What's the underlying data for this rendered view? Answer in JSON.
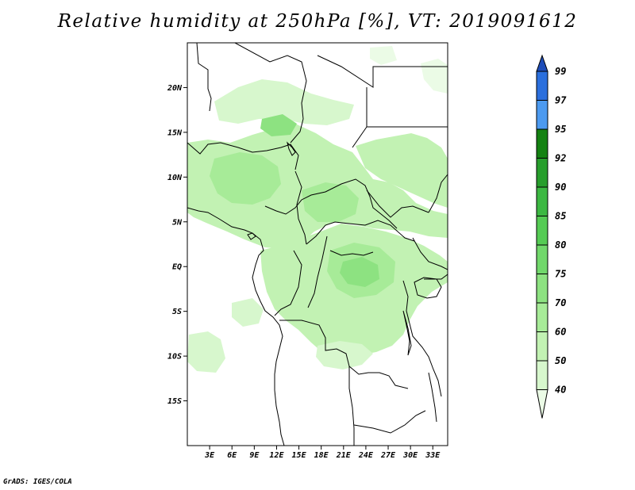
{
  "title": "Relative humidity at 250hPa [%], VT: 2019091612",
  "footer": "GrADS: IGES/COLA",
  "map": {
    "variable": "Relative humidity",
    "level": "250hPa",
    "units": "%",
    "valid_time": "2019091612",
    "lon_range": [
      0,
      35
    ],
    "lat_range": [
      -20,
      25
    ],
    "lat_labels": [
      {
        "lat": 20,
        "label": "20N"
      },
      {
        "lat": 15,
        "label": "15N"
      },
      {
        "lat": 10,
        "label": "10N"
      },
      {
        "lat": 5,
        "label": "5N"
      },
      {
        "lat": 0,
        "label": "EQ"
      },
      {
        "lat": -5,
        "label": "5S"
      },
      {
        "lat": -10,
        "label": "10S"
      },
      {
        "lat": -15,
        "label": "15S"
      }
    ],
    "lon_labels": [
      {
        "lon": 3,
        "label": "3E"
      },
      {
        "lon": 6,
        "label": "6E"
      },
      {
        "lon": 9,
        "label": "9E"
      },
      {
        "lon": 12,
        "label": "12E"
      },
      {
        "lon": 15,
        "label": "15E"
      },
      {
        "lon": 18,
        "label": "18E"
      },
      {
        "lon": 21,
        "label": "21E"
      },
      {
        "lon": 24,
        "label": "24E"
      },
      {
        "lon": 27,
        "label": "27E"
      },
      {
        "lon": 30,
        "label": "30E"
      },
      {
        "lon": 33,
        "label": "33E"
      }
    ]
  },
  "colorbar": {
    "levels": [
      "40",
      "50",
      "60",
      "70",
      "75",
      "80",
      "85",
      "90",
      "92",
      "95",
      "97",
      "99"
    ],
    "colors": [
      "#ebfbe6",
      "#d7f7cd",
      "#c2f2b3",
      "#a7eb98",
      "#8de281",
      "#71d86b",
      "#55cb54",
      "#3cb842",
      "#279e2c",
      "#148212",
      "#4c9af0",
      "#2b6fdd",
      "#1e4db8"
    ]
  },
  "colors": {
    "map_line": "#000000",
    "frame": "#000000"
  }
}
